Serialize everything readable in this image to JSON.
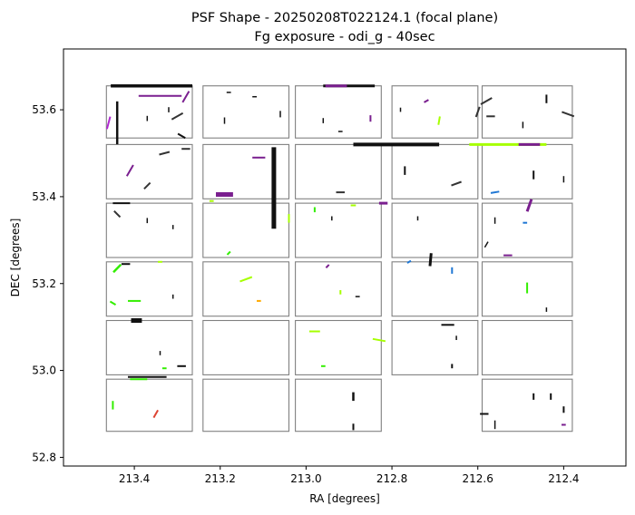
{
  "chart_data": {
    "type": "scatter",
    "title": "PSF Shape - 20250208T022124.1 (focal plane)",
    "subtitle": "Fg exposure - odi_g - 40sec",
    "xlabel": "RA [degrees]",
    "ylabel": "DEC [degrees]",
    "xlim": [
      213.565,
      212.255
    ],
    "ylim": [
      52.78,
      53.74
    ],
    "x_inverted": true,
    "grid": false,
    "xticks": [
      213.4,
      213.2,
      213.0,
      212.8,
      212.6,
      212.4
    ],
    "xtick_labels": [
      "213.4",
      "213.2",
      "213.0",
      "212.8",
      "212.6",
      "212.4"
    ],
    "yticks": [
      52.8,
      53.0,
      53.2,
      53.4,
      53.6
    ],
    "ytick_labels": [
      "52.8",
      "53.0",
      "53.2",
      "53.4",
      "53.6"
    ],
    "ccd_columns": [
      [
        213.465,
        213.265
      ],
      [
        213.24,
        213.04
      ],
      [
        213.025,
        212.825
      ],
      [
        212.8,
        212.6
      ],
      [
        212.59,
        212.38
      ]
    ],
    "ccd_rows": [
      [
        53.655,
        53.535
      ],
      [
        53.52,
        53.395
      ],
      [
        53.385,
        53.26
      ],
      [
        53.25,
        53.125
      ],
      [
        53.115,
        52.99
      ],
      [
        52.98,
        52.86
      ]
    ],
    "ccd_missing": [
      [
        5,
        3
      ]
    ],
    "psf_sticks": [
      {
        "ra": 213.36,
        "dec": 53.655,
        "len": 0.19,
        "ang": 0,
        "color": "#111111",
        "w": 3.5
      },
      {
        "ra": 213.34,
        "dec": 53.632,
        "len": 0.1,
        "ang": 0,
        "color": "#7a1f8f",
        "w": 2
      },
      {
        "ra": 213.44,
        "dec": 53.57,
        "len": 0.1,
        "ang": 90,
        "color": "#111111",
        "w": 2.5
      },
      {
        "ra": 213.28,
        "dec": 53.63,
        "len": 0.03,
        "ang": 60,
        "color": "#7a1f8f",
        "w": 2
      },
      {
        "ra": 213.3,
        "dec": 53.585,
        "len": 0.03,
        "ang": 30,
        "color": "#333333",
        "w": 2
      },
      {
        "ra": 213.29,
        "dec": 53.54,
        "len": 0.02,
        "ang": -30,
        "color": "#111111",
        "w": 2
      },
      {
        "ra": 213.46,
        "dec": 53.57,
        "len": 0.03,
        "ang": 75,
        "color": "#b02ad1",
        "w": 2
      },
      {
        "ra": 213.37,
        "dec": 53.58,
        "len": 0.012,
        "ang": 90,
        "color": "#111111",
        "w": 1.5
      },
      {
        "ra": 213.32,
        "dec": 53.6,
        "len": 0.012,
        "ang": 90,
        "color": "#111111",
        "w": 1.5
      },
      {
        "ra": 213.18,
        "dec": 53.64,
        "len": 0.01,
        "ang": 0,
        "color": "#111111",
        "w": 1.5
      },
      {
        "ra": 213.12,
        "dec": 53.63,
        "len": 0.01,
        "ang": 0,
        "color": "#111111",
        "w": 1.5
      },
      {
        "ra": 213.19,
        "dec": 53.575,
        "len": 0.015,
        "ang": 90,
        "color": "#111111",
        "w": 1.5
      },
      {
        "ra": 213.06,
        "dec": 53.59,
        "len": 0.015,
        "ang": 90,
        "color": "#111111",
        "w": 1.5
      },
      {
        "ra": 212.9,
        "dec": 53.655,
        "len": 0.12,
        "ang": 0,
        "color": "#111111",
        "w": 3
      },
      {
        "ra": 212.93,
        "dec": 53.655,
        "len": 0.05,
        "ang": 0,
        "color": "#7a1f8f",
        "w": 3
      },
      {
        "ra": 212.96,
        "dec": 53.575,
        "len": 0.012,
        "ang": 90,
        "color": "#111111",
        "w": 1.5
      },
      {
        "ra": 212.85,
        "dec": 53.58,
        "len": 0.015,
        "ang": 90,
        "color": "#7a1f8f",
        "w": 2
      },
      {
        "ra": 212.92,
        "dec": 53.55,
        "len": 0.01,
        "ang": 0,
        "color": "#111111",
        "w": 1.5
      },
      {
        "ra": 212.72,
        "dec": 53.62,
        "len": 0.012,
        "ang": 30,
        "color": "#7a1f8f",
        "w": 2
      },
      {
        "ra": 212.69,
        "dec": 53.575,
        "len": 0.02,
        "ang": 80,
        "color": "#a6ff00",
        "w": 2
      },
      {
        "ra": 212.6,
        "dec": 53.595,
        "len": 0.025,
        "ang": 70,
        "color": "#333333",
        "w": 2
      },
      {
        "ra": 212.78,
        "dec": 53.6,
        "len": 0.01,
        "ang": 90,
        "color": "#111111",
        "w": 1.5
      },
      {
        "ra": 212.58,
        "dec": 53.62,
        "len": 0.03,
        "ang": 30,
        "color": "#333333",
        "w": 2
      },
      {
        "ra": 212.57,
        "dec": 53.585,
        "len": 0.02,
        "ang": 0,
        "color": "#333333",
        "w": 2
      },
      {
        "ra": 212.44,
        "dec": 53.625,
        "len": 0.02,
        "ang": 90,
        "color": "#111111",
        "w": 2
      },
      {
        "ra": 212.39,
        "dec": 53.59,
        "len": 0.03,
        "ang": -20,
        "color": "#333333",
        "w": 2
      },
      {
        "ra": 212.495,
        "dec": 53.565,
        "len": 0.015,
        "ang": 90,
        "color": "#111111",
        "w": 1.5
      },
      {
        "ra": 213.41,
        "dec": 53.46,
        "len": 0.03,
        "ang": 60,
        "color": "#7a1f8f",
        "w": 2
      },
      {
        "ra": 213.37,
        "dec": 53.425,
        "len": 0.02,
        "ang": 45,
        "color": "#333333",
        "w": 2
      },
      {
        "ra": 213.33,
        "dec": 53.5,
        "len": 0.025,
        "ang": 15,
        "color": "#333333",
        "w": 2
      },
      {
        "ra": 213.28,
        "dec": 53.51,
        "len": 0.02,
        "ang": 0,
        "color": "#333333",
        "w": 2
      },
      {
        "ra": 213.075,
        "dec": 53.42,
        "len": 0.19,
        "ang": 90,
        "color": "#111111",
        "w": 5
      },
      {
        "ra": 213.11,
        "dec": 53.49,
        "len": 0.03,
        "ang": 0,
        "color": "#7a1f8f",
        "w": 2
      },
      {
        "ra": 213.19,
        "dec": 53.405,
        "len": 0.04,
        "ang": 0,
        "color": "#7a1f8f",
        "w": 5
      },
      {
        "ra": 212.92,
        "dec": 53.41,
        "len": 0.02,
        "ang": 0,
        "color": "#333333",
        "w": 2
      },
      {
        "ra": 212.79,
        "dec": 53.52,
        "len": 0.2,
        "ang": 0,
        "color": "#111111",
        "w": 4
      },
      {
        "ra": 212.53,
        "dec": 53.52,
        "len": 0.18,
        "ang": 0,
        "color": "#a6ff00",
        "w": 3
      },
      {
        "ra": 212.48,
        "dec": 53.52,
        "len": 0.05,
        "ang": 0,
        "color": "#7a1f8f",
        "w": 3
      },
      {
        "ra": 212.77,
        "dec": 53.46,
        "len": 0.02,
        "ang": 90,
        "color": "#111111",
        "w": 2
      },
      {
        "ra": 212.65,
        "dec": 53.43,
        "len": 0.025,
        "ang": 20,
        "color": "#333333",
        "w": 2
      },
      {
        "ra": 212.56,
        "dec": 53.41,
        "len": 0.02,
        "ang": 10,
        "color": "#1f77d4",
        "w": 2
      },
      {
        "ra": 212.47,
        "dec": 53.45,
        "len": 0.02,
        "ang": 90,
        "color": "#111111",
        "w": 2
      },
      {
        "ra": 212.4,
        "dec": 53.44,
        "len": 0.015,
        "ang": 90,
        "color": "#111111",
        "w": 1.5
      },
      {
        "ra": 212.82,
        "dec": 53.385,
        "len": 0.02,
        "ang": 0,
        "color": "#7a1f8f",
        "w": 3
      },
      {
        "ra": 213.43,
        "dec": 53.385,
        "len": 0.04,
        "ang": 0,
        "color": "#111111",
        "w": 2
      },
      {
        "ra": 213.44,
        "dec": 53.36,
        "len": 0.02,
        "ang": -45,
        "color": "#333333",
        "w": 2
      },
      {
        "ra": 213.37,
        "dec": 53.345,
        "len": 0.012,
        "ang": 90,
        "color": "#111111",
        "w": 1.5
      },
      {
        "ra": 213.31,
        "dec": 53.33,
        "len": 0.01,
        "ang": 90,
        "color": "#111111",
        "w": 1.5
      },
      {
        "ra": 213.22,
        "dec": 53.39,
        "len": 0.01,
        "ang": 0,
        "color": "#a6ff00",
        "w": 2
      },
      {
        "ra": 213.18,
        "dec": 53.27,
        "len": 0.01,
        "ang": 45,
        "color": "#33ee00",
        "w": 2
      },
      {
        "ra": 213.04,
        "dec": 53.35,
        "len": 0.02,
        "ang": 90,
        "color": "#a6ff00",
        "w": 2
      },
      {
        "ra": 212.98,
        "dec": 53.37,
        "len": 0.012,
        "ang": 90,
        "color": "#33ee00",
        "w": 2
      },
      {
        "ra": 212.94,
        "dec": 53.35,
        "len": 0.01,
        "ang": 90,
        "color": "#111111",
        "w": 1.5
      },
      {
        "ra": 212.89,
        "dec": 53.38,
        "len": 0.012,
        "ang": 0,
        "color": "#a6ff00",
        "w": 2
      },
      {
        "ra": 212.74,
        "dec": 53.35,
        "len": 0.01,
        "ang": 90,
        "color": "#111111",
        "w": 1.5
      },
      {
        "ra": 212.48,
        "dec": 53.38,
        "len": 0.03,
        "ang": 70,
        "color": "#7a1f8f",
        "w": 3
      },
      {
        "ra": 212.56,
        "dec": 53.345,
        "len": 0.015,
        "ang": 90,
        "color": "#111111",
        "w": 1.5
      },
      {
        "ra": 212.49,
        "dec": 53.34,
        "len": 0.01,
        "ang": 0,
        "color": "#1f77d4",
        "w": 2
      },
      {
        "ra": 212.53,
        "dec": 53.265,
        "len": 0.02,
        "ang": 0,
        "color": "#7a1f8f",
        "w": 2
      },
      {
        "ra": 212.58,
        "dec": 53.29,
        "len": 0.015,
        "ang": 60,
        "color": "#111111",
        "w": 1.5
      },
      {
        "ra": 213.44,
        "dec": 53.235,
        "len": 0.025,
        "ang": 45,
        "color": "#33ee00",
        "w": 2.5
      },
      {
        "ra": 213.42,
        "dec": 53.245,
        "len": 0.02,
        "ang": 0,
        "color": "#111111",
        "w": 2
      },
      {
        "ra": 213.45,
        "dec": 53.155,
        "len": 0.015,
        "ang": -30,
        "color": "#33ee00",
        "w": 2
      },
      {
        "ra": 213.4,
        "dec": 53.16,
        "len": 0.03,
        "ang": 0,
        "color": "#33ee00",
        "w": 2
      },
      {
        "ra": 213.31,
        "dec": 53.17,
        "len": 0.01,
        "ang": 90,
        "color": "#111111",
        "w": 1.5
      },
      {
        "ra": 213.34,
        "dec": 53.25,
        "len": 0.01,
        "ang": 0,
        "color": "#a6ff00",
        "w": 2
      },
      {
        "ra": 213.14,
        "dec": 53.21,
        "len": 0.03,
        "ang": 20,
        "color": "#a6ff00",
        "w": 2
      },
      {
        "ra": 213.11,
        "dec": 53.16,
        "len": 0.01,
        "ang": 0,
        "color": "#ffaa00",
        "w": 2
      },
      {
        "ra": 212.95,
        "dec": 53.24,
        "len": 0.01,
        "ang": 45,
        "color": "#7a1f8f",
        "w": 2
      },
      {
        "ra": 212.92,
        "dec": 53.18,
        "len": 0.01,
        "ang": 90,
        "color": "#a6ff00",
        "w": 2
      },
      {
        "ra": 212.88,
        "dec": 53.17,
        "len": 0.01,
        "ang": 0,
        "color": "#111111",
        "w": 1.5
      },
      {
        "ra": 212.71,
        "dec": 53.255,
        "len": 0.03,
        "ang": 85,
        "color": "#111111",
        "w": 3
      },
      {
        "ra": 212.66,
        "dec": 53.23,
        "len": 0.015,
        "ang": 90,
        "color": "#1f77d4",
        "w": 2
      },
      {
        "ra": 212.76,
        "dec": 53.25,
        "len": 0.01,
        "ang": 30,
        "color": "#1f77d4",
        "w": 2
      },
      {
        "ra": 212.485,
        "dec": 53.19,
        "len": 0.025,
        "ang": 90,
        "color": "#33ee00",
        "w": 2
      },
      {
        "ra": 212.44,
        "dec": 53.14,
        "len": 0.01,
        "ang": 90,
        "color": "#111111",
        "w": 1.5
      },
      {
        "ra": 213.395,
        "dec": 53.115,
        "len": 0.025,
        "ang": 0,
        "color": "#111111",
        "w": 5
      },
      {
        "ra": 213.29,
        "dec": 53.01,
        "len": 0.02,
        "ang": 0,
        "color": "#111111",
        "w": 2
      },
      {
        "ra": 213.34,
        "dec": 53.04,
        "len": 0.01,
        "ang": 90,
        "color": "#111111",
        "w": 1.5
      },
      {
        "ra": 212.98,
        "dec": 53.09,
        "len": 0.025,
        "ang": 0,
        "color": "#a6ff00",
        "w": 2
      },
      {
        "ra": 212.83,
        "dec": 53.07,
        "len": 0.03,
        "ang": -10,
        "color": "#a6ff00",
        "w": 2
      },
      {
        "ra": 212.96,
        "dec": 53.01,
        "len": 0.01,
        "ang": 0,
        "color": "#33ee00",
        "w": 2
      },
      {
        "ra": 212.67,
        "dec": 53.105,
        "len": 0.03,
        "ang": 0,
        "color": "#111111",
        "w": 2
      },
      {
        "ra": 212.65,
        "dec": 53.075,
        "len": 0.01,
        "ang": 90,
        "color": "#111111",
        "w": 1.5
      },
      {
        "ra": 212.66,
        "dec": 53.01,
        "len": 0.01,
        "ang": 90,
        "color": "#111111",
        "w": 2
      },
      {
        "ra": 213.33,
        "dec": 53.005,
        "len": 0.01,
        "ang": 0,
        "color": "#33ee00",
        "w": 2
      },
      {
        "ra": 213.37,
        "dec": 52.985,
        "len": 0.09,
        "ang": 0,
        "color": "#111111",
        "w": 2
      },
      {
        "ra": 213.39,
        "dec": 52.98,
        "len": 0.04,
        "ang": 0,
        "color": "#33ee00",
        "w": 2
      },
      {
        "ra": 213.45,
        "dec": 52.92,
        "len": 0.02,
        "ang": 90,
        "color": "#33ee00",
        "w": 2
      },
      {
        "ra": 213.35,
        "dec": 52.9,
        "len": 0.02,
        "ang": 60,
        "color": "#dd4433",
        "w": 2
      },
      {
        "ra": 212.89,
        "dec": 52.94,
        "len": 0.02,
        "ang": 90,
        "color": "#111111",
        "w": 2.5
      },
      {
        "ra": 212.89,
        "dec": 52.87,
        "len": 0.015,
        "ang": 90,
        "color": "#111111",
        "w": 2
      },
      {
        "ra": 212.585,
        "dec": 52.9,
        "len": 0.02,
        "ang": 0,
        "color": "#111111",
        "w": 2
      },
      {
        "ra": 212.56,
        "dec": 52.875,
        "len": 0.02,
        "ang": 90,
        "color": "#111111",
        "w": 1.5
      },
      {
        "ra": 212.47,
        "dec": 52.94,
        "len": 0.015,
        "ang": 90,
        "color": "#111111",
        "w": 2
      },
      {
        "ra": 212.43,
        "dec": 52.94,
        "len": 0.015,
        "ang": 90,
        "color": "#111111",
        "w": 2
      },
      {
        "ra": 212.4,
        "dec": 52.91,
        "len": 0.015,
        "ang": 90,
        "color": "#111111",
        "w": 2
      },
      {
        "ra": 212.4,
        "dec": 52.875,
        "len": 0.01,
        "ang": 0,
        "color": "#7a1f8f",
        "w": 2
      }
    ]
  }
}
